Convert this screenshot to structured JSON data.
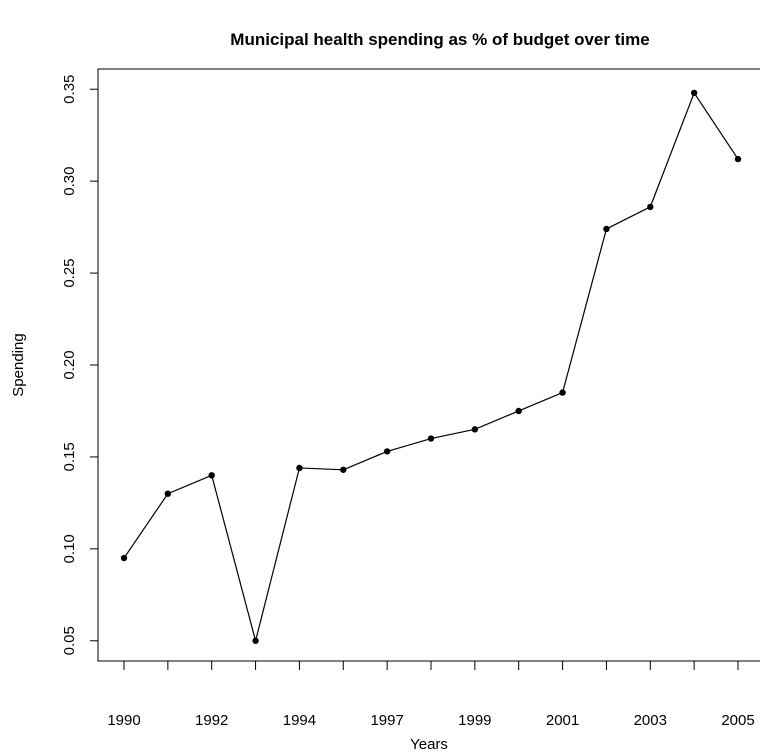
{
  "chart_data": {
    "type": "line",
    "title": "Municipal health spending as % of budget over time",
    "x_label": "Years",
    "y_label": "Spending",
    "categories": [
      "1990",
      null,
      "1992",
      null,
      "1994",
      null,
      "1997",
      null,
      "1999",
      null,
      "2001",
      null,
      "2003",
      null,
      "2005"
    ],
    "values": [
      0.095,
      0.13,
      0.14,
      0.05,
      0.144,
      0.143,
      0.153,
      0.16,
      0.165,
      0.175,
      0.185,
      0.274,
      0.286,
      0.348,
      0.312
    ],
    "color": "#000000",
    "ylim": [
      0.039,
      0.361
    ],
    "yticks": [
      0.05,
      {
        "value": 0.1,
        "label": "0.10"
      },
      0.15,
      {
        "value": 0.2,
        "label": "0.20"
      },
      0.25,
      {
        "value": 0.3,
        "label": "0.30"
      },
      0.35
    ]
  }
}
